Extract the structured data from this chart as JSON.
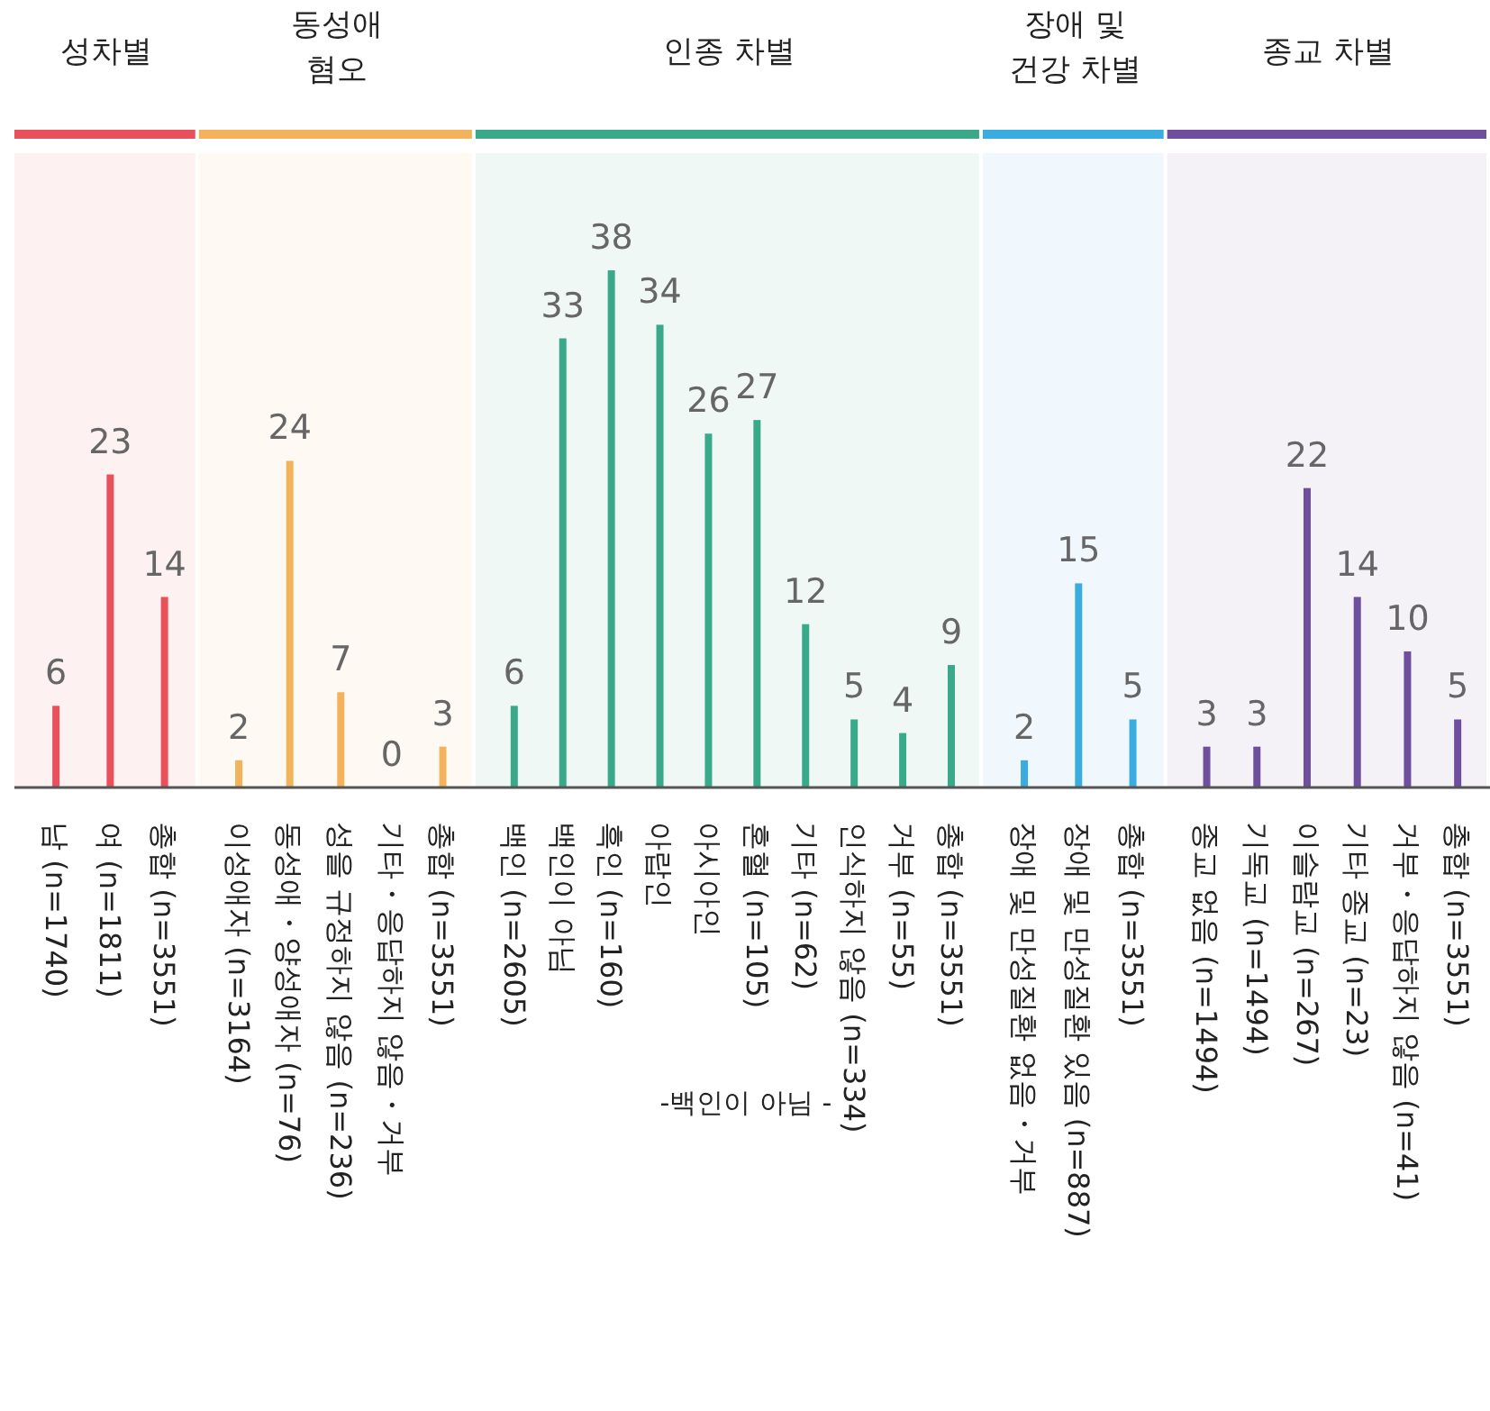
{
  "chart_data": [
    {
      "type": "bar",
      "title": "성차별",
      "categories": [
        "남 (n=1740)",
        "여 (n=1811)",
        "총합 (n=3551)"
      ],
      "values": [
        6,
        23,
        14
      ],
      "color": "#e8505b",
      "data_labels": true
    },
    {
      "type": "bar",
      "title": "동성애\n혐오",
      "categories": [
        "이성애자 (n=3164)",
        "동성애・양성애자 (n=76)",
        "성을 규정하지 않음 (n=236)",
        "기타・응답하지 않음・거부",
        "총합 (n=3551)"
      ],
      "values": [
        2,
        24,
        7,
        0,
        3
      ],
      "color": "#f2b35c",
      "data_labels": true
    },
    {
      "type": "bar",
      "title": "인종 차별",
      "categories": [
        "백인 (n=2605)",
        "백인이 아님",
        "흑인 (n=160)",
        "아랍인",
        "아시아인",
        "혼혈 (n=105)",
        "기타 (n=62)",
        "인식하지 않음 (n=334)",
        "거부 (n=55)",
        "총합 (n=3551)"
      ],
      "values": [
        6,
        33,
        38,
        34,
        26,
        27,
        12,
        5,
        4,
        9
      ],
      "color": "#3aa98a",
      "data_labels": true,
      "annotations": [
        "-백인이 아님 -"
      ]
    },
    {
      "type": "bar",
      "title": "장애 및\n건강 차별",
      "categories": [
        "장애 및 만성질환 없음・거부",
        "장애 및 만성질환 있음 (n=887)",
        "총합 (n=3551)"
      ],
      "values": [
        2,
        15,
        5
      ],
      "color": "#3aace0",
      "data_labels": true
    },
    {
      "type": "bar",
      "title": "종교 차별",
      "categories": [
        "종교 없음 (n=1494)",
        "기독교 (n=1494)",
        "이슬람교 (n=267)",
        "기타 종교 (n=23)",
        "거부・응답하지 않음 (n=41)",
        "총합 (n=3551)"
      ],
      "values": [
        3,
        3,
        22,
        14,
        10,
        5
      ],
      "color": "#6e4f9e",
      "data_labels": true
    }
  ]
}
